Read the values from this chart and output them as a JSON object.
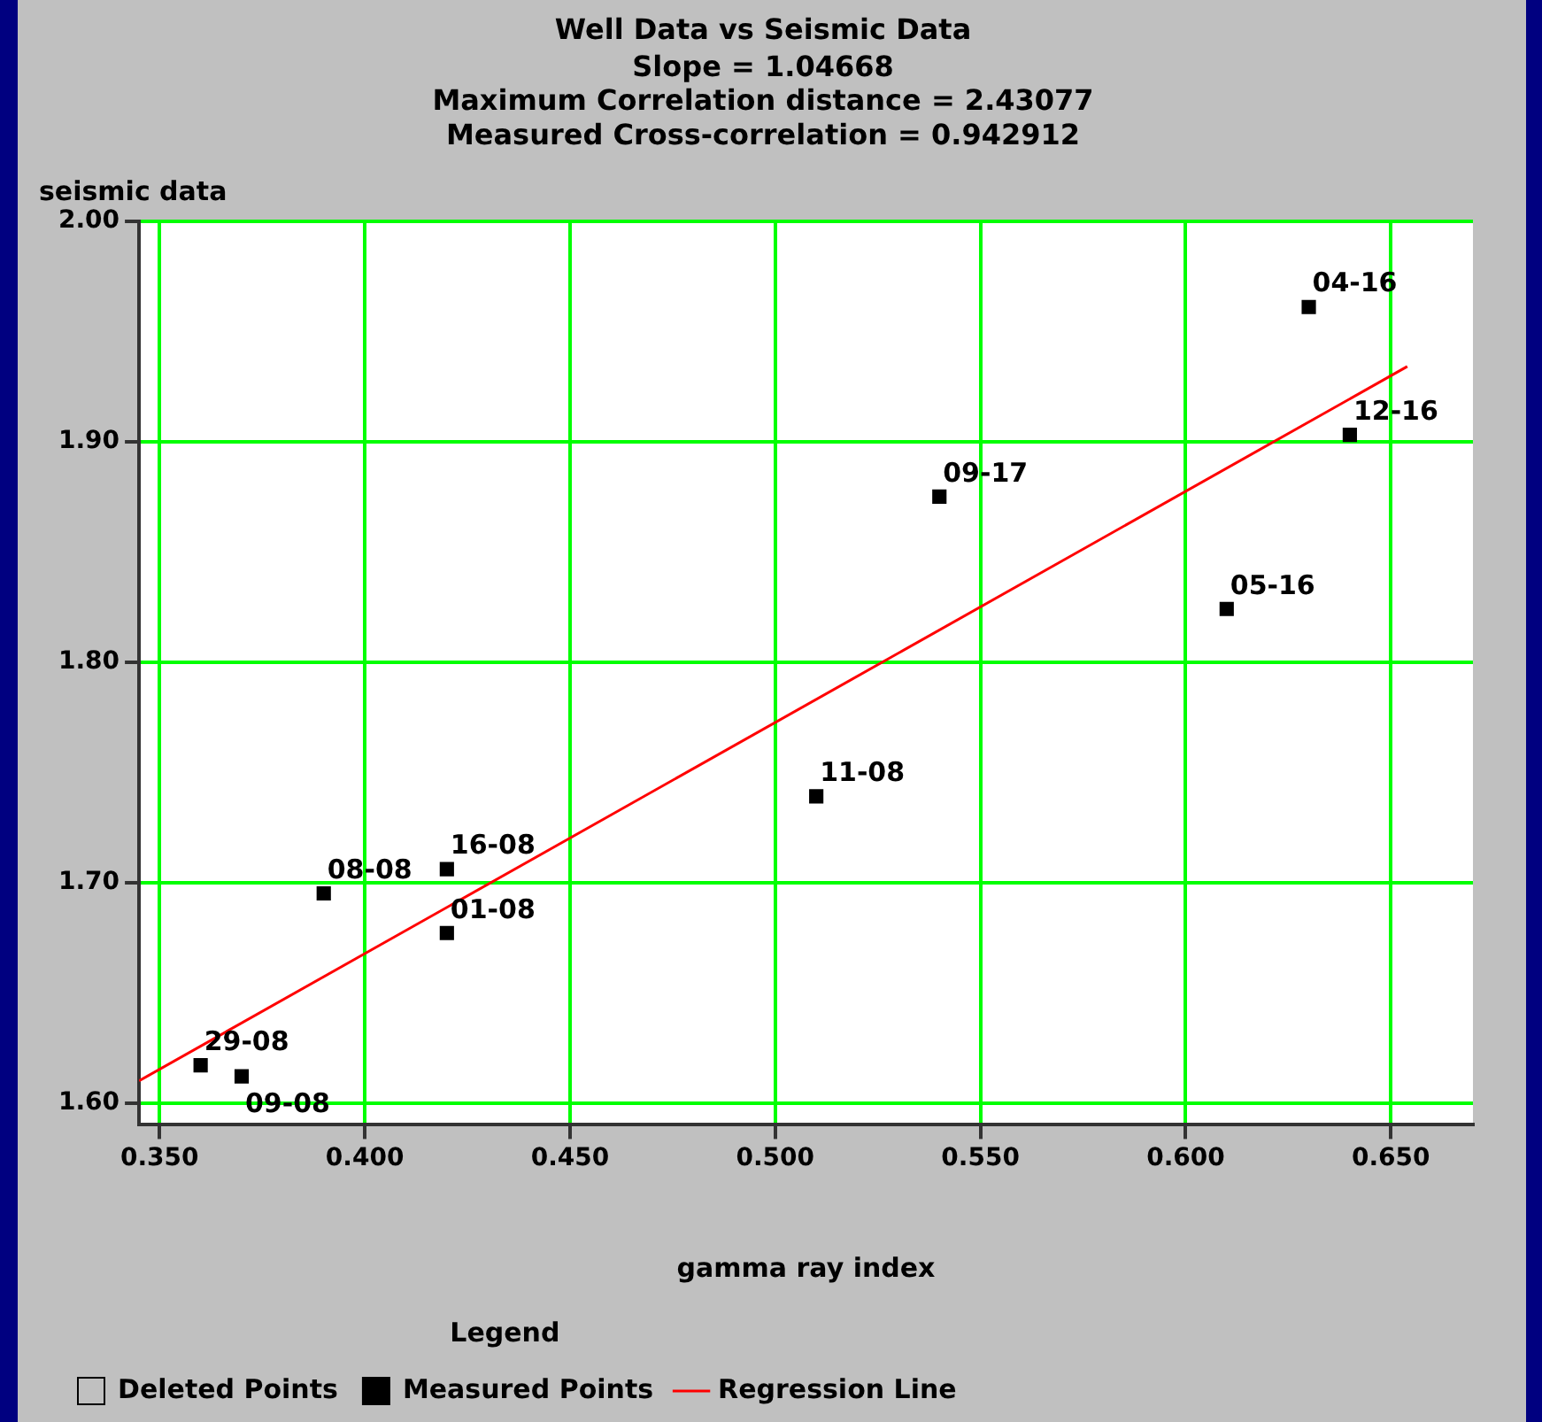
{
  "chart_data": {
    "type": "scatter",
    "title": "Well Data vs Seismic Data",
    "subtitle": "Slope = 1.04668\nMaximum Correlation distance = 2.43077\nMeasured Cross-correlation = 0.942912",
    "xlabel": "gamma ray index",
    "ylabel": "seismic data",
    "legend_title": "Legend",
    "legend": "bottom",
    "grid": true,
    "marker": "square",
    "xlim": [
      0.345,
      0.67
    ],
    "ylim": [
      1.59,
      2.0
    ],
    "xticks": [
      {
        "value": 0.35,
        "label": "0.350"
      },
      {
        "value": 0.4,
        "label": "0.400"
      },
      {
        "value": 0.45,
        "label": "0.450"
      },
      {
        "value": 0.5,
        "label": "0.500"
      },
      {
        "value": 0.55,
        "label": "0.550"
      },
      {
        "value": 0.6,
        "label": "0.600"
      },
      {
        "value": 0.65,
        "label": "0.650"
      }
    ],
    "yticks": [
      {
        "value": 1.6,
        "label": "1.60"
      },
      {
        "value": 1.7,
        "label": "1.70"
      },
      {
        "value": 1.8,
        "label": "1.80"
      },
      {
        "value": 1.9,
        "label": "1.90"
      },
      {
        "value": 2.0,
        "label": "2.00"
      }
    ],
    "series": [
      {
        "name": "Deleted Points",
        "type": "scatter",
        "color": "#c0c0c0"
      },
      {
        "name": "Measured Points",
        "type": "scatter",
        "color": "#000000",
        "x": [
          0.36,
          0.37,
          0.39,
          0.42,
          0.42,
          0.51,
          0.54,
          0.61,
          0.63,
          0.64
        ],
        "values": [
          1.617,
          1.612,
          1.695,
          1.706,
          1.677,
          1.739,
          1.875,
          1.824,
          1.961,
          1.903
        ]
      },
      {
        "name": "Regression Line",
        "type": "line",
        "color": "#ff0000",
        "marker": "none",
        "line_style": "solid",
        "x": [
          0.345,
          0.654
        ],
        "values": [
          1.61,
          1.934
        ]
      }
    ],
    "annotations": [
      {
        "text": "29-08",
        "x": 0.36,
        "y": 1.617
      },
      {
        "text": "09-08",
        "x": 0.37,
        "y": 1.612
      },
      {
        "text": "08-08",
        "x": 0.39,
        "y": 1.695
      },
      {
        "text": "16-08",
        "x": 0.42,
        "y": 1.706
      },
      {
        "text": "01-08",
        "x": 0.42,
        "y": 1.677
      },
      {
        "text": "11-08",
        "x": 0.51,
        "y": 1.739
      },
      {
        "text": "09-17",
        "x": 0.54,
        "y": 1.875
      },
      {
        "text": "05-16",
        "x": 0.61,
        "y": 1.824
      },
      {
        "text": "04-16",
        "x": 0.63,
        "y": 1.961
      },
      {
        "text": "12-16",
        "x": 0.64,
        "y": 1.903
      }
    ]
  }
}
